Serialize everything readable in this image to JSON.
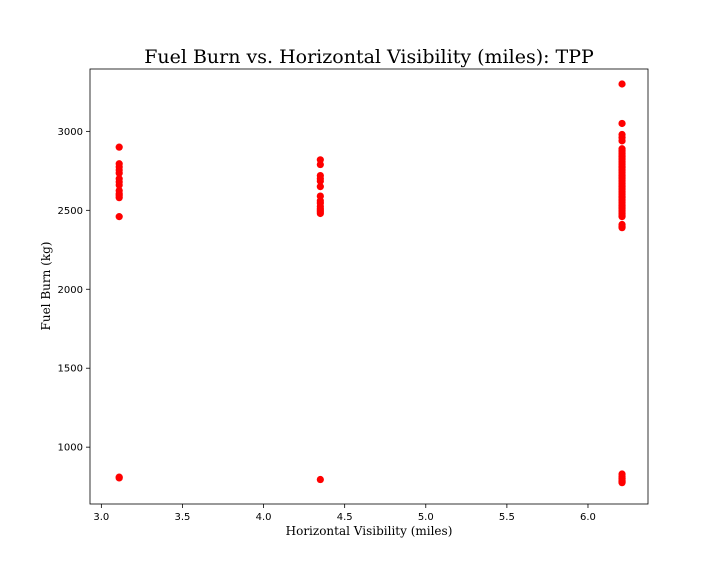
{
  "chart_data": {
    "type": "scatter",
    "title": "Fuel Burn vs. Horizontal Visibility (miles): TPP",
    "xlabel": "Horizontal Visibility (miles)",
    "ylabel": "Fuel Burn (kg)",
    "xlim": [
      2.93,
      6.37
    ],
    "ylim": [
      640,
      3395
    ],
    "xticks": [
      3.0,
      3.5,
      4.0,
      4.5,
      5.0,
      5.5,
      6.0
    ],
    "xtick_labels": [
      "3.0",
      "3.5",
      "4.0",
      "4.5",
      "5.0",
      "5.5",
      "6.0"
    ],
    "yticks": [
      1000,
      1500,
      2000,
      2500,
      3000
    ],
    "ytick_labels": [
      "1000",
      "1500",
      "2000",
      "2500",
      "3000"
    ],
    "grid": false,
    "marker_color": "#ff0000",
    "series": [
      {
        "x": [
          3.11,
          3.11,
          3.11,
          3.11,
          3.11,
          3.11,
          3.11,
          3.11,
          3.11,
          3.11,
          3.11,
          3.11,
          3.11,
          3.11,
          3.11,
          4.35,
          4.35,
          4.35,
          4.35,
          4.35,
          4.35,
          4.35,
          4.35,
          4.35,
          4.35,
          4.35,
          4.35,
          4.35,
          4.35,
          4.35,
          6.21,
          6.21,
          6.21,
          6.21,
          6.21,
          6.21,
          6.21,
          6.21,
          6.21,
          6.21,
          6.21,
          6.21,
          6.21,
          6.21,
          6.21,
          6.21,
          6.21,
          6.21,
          6.21,
          6.21,
          6.21,
          6.21,
          6.21,
          6.21,
          6.21,
          6.21,
          6.21,
          6.21,
          6.21,
          6.21,
          6.21,
          6.21,
          6.21,
          6.21,
          6.21,
          6.21,
          6.21,
          6.21,
          6.21,
          6.21,
          6.21,
          6.21,
          6.21,
          6.21,
          6.21,
          6.21,
          6.21,
          6.21,
          6.21,
          6.21,
          6.21,
          6.21,
          6.21,
          6.21,
          6.21,
          6.21,
          6.21,
          6.21,
          6.21,
          6.21
        ],
        "y": [
          2900,
          2795,
          2775,
          2755,
          2735,
          2700,
          2680,
          2660,
          2625,
          2605,
          2595,
          2580,
          2460,
          810,
          805,
          2820,
          2790,
          2720,
          2700,
          2685,
          2650,
          2590,
          2560,
          2545,
          2525,
          2510,
          2500,
          2490,
          2480,
          795,
          3300,
          3050,
          2980,
          2960,
          2940,
          2890,
          2880,
          2870,
          2860,
          2850,
          2840,
          2830,
          2820,
          2810,
          2800,
          2790,
          2780,
          2770,
          2760,
          2750,
          2740,
          2730,
          2720,
          2710,
          2700,
          2690,
          2680,
          2670,
          2660,
          2650,
          2640,
          2630,
          2620,
          2610,
          2600,
          2590,
          2580,
          2570,
          2560,
          2550,
          2540,
          2530,
          2520,
          2510,
          2500,
          2490,
          2480,
          2470,
          2460,
          2410,
          2400,
          2390,
          830,
          815,
          805,
          800,
          790,
          785,
          780,
          775
        ]
      }
    ]
  }
}
